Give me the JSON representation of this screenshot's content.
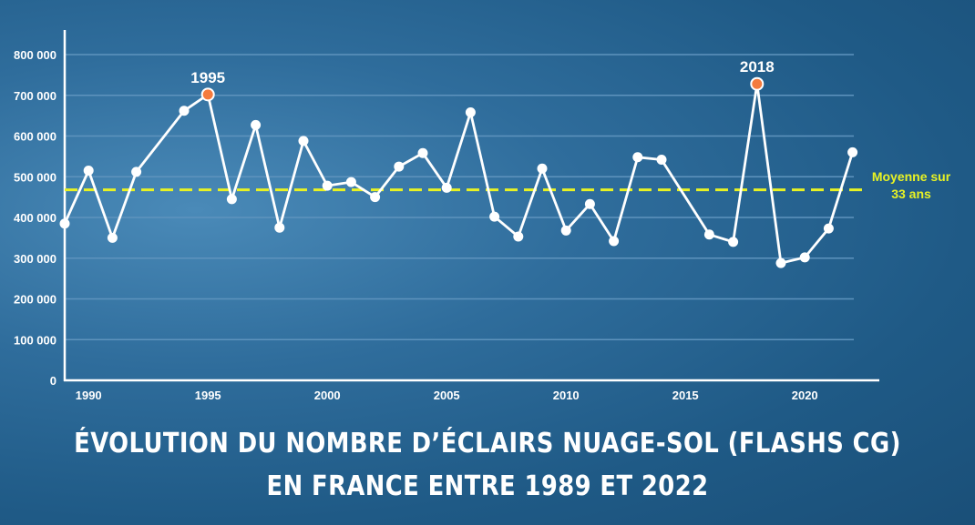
{
  "chart_data": {
    "type": "line",
    "title_lines": [
      "ÉVOLUTION DU NOMBRE D’ÉCLAIRS NUAGE-SOL (FLASHS CG)",
      "EN FRANCE ENTRE 1989 ET 2022"
    ],
    "xlabel": "",
    "ylabel": "",
    "x_ticks": [
      "1990",
      "1995",
      "2000",
      "2005",
      "2010",
      "2015",
      "2020"
    ],
    "y_ticks": [
      "0",
      "100 000",
      "200 000",
      "300 000",
      "400 000",
      "500 000",
      "600 000",
      "700 000",
      "800 000"
    ],
    "xlim": [
      1989,
      2023
    ],
    "ylim": [
      0,
      850000
    ],
    "grid": true,
    "x": [
      1989,
      1990,
      1991,
      1992,
      1994,
      1995,
      1996,
      1997,
      1998,
      1999,
      2000,
      2001,
      2002,
      2003,
      2004,
      2005,
      2006,
      2007,
      2008,
      2009,
      2010,
      2011,
      2012,
      2013,
      2014,
      2016,
      2017,
      2018,
      2019,
      2020,
      2021,
      2022
    ],
    "values": [
      385000,
      515000,
      350000,
      512000,
      662000,
      702000,
      445000,
      627000,
      375000,
      588000,
      478000,
      487000,
      450000,
      525000,
      558000,
      473000,
      658000,
      402000,
      353000,
      520000,
      368000,
      433000,
      342000,
      548000,
      542000,
      358000,
      340000,
      728000,
      288000,
      302000,
      373000,
      560000
    ],
    "highlights": [
      {
        "x": 1995,
        "label": "1995"
      },
      {
        "x": 2018,
        "label": "2018"
      }
    ],
    "average": {
      "value": 468000,
      "label_lines": [
        "Moyenne sur",
        "33 ans"
      ]
    },
    "colors": {
      "line": "#ffffff",
      "highlight": "#f47b3e",
      "average": "#e8f224",
      "grid": "#5e93bd",
      "axis": "#ffffff"
    }
  }
}
